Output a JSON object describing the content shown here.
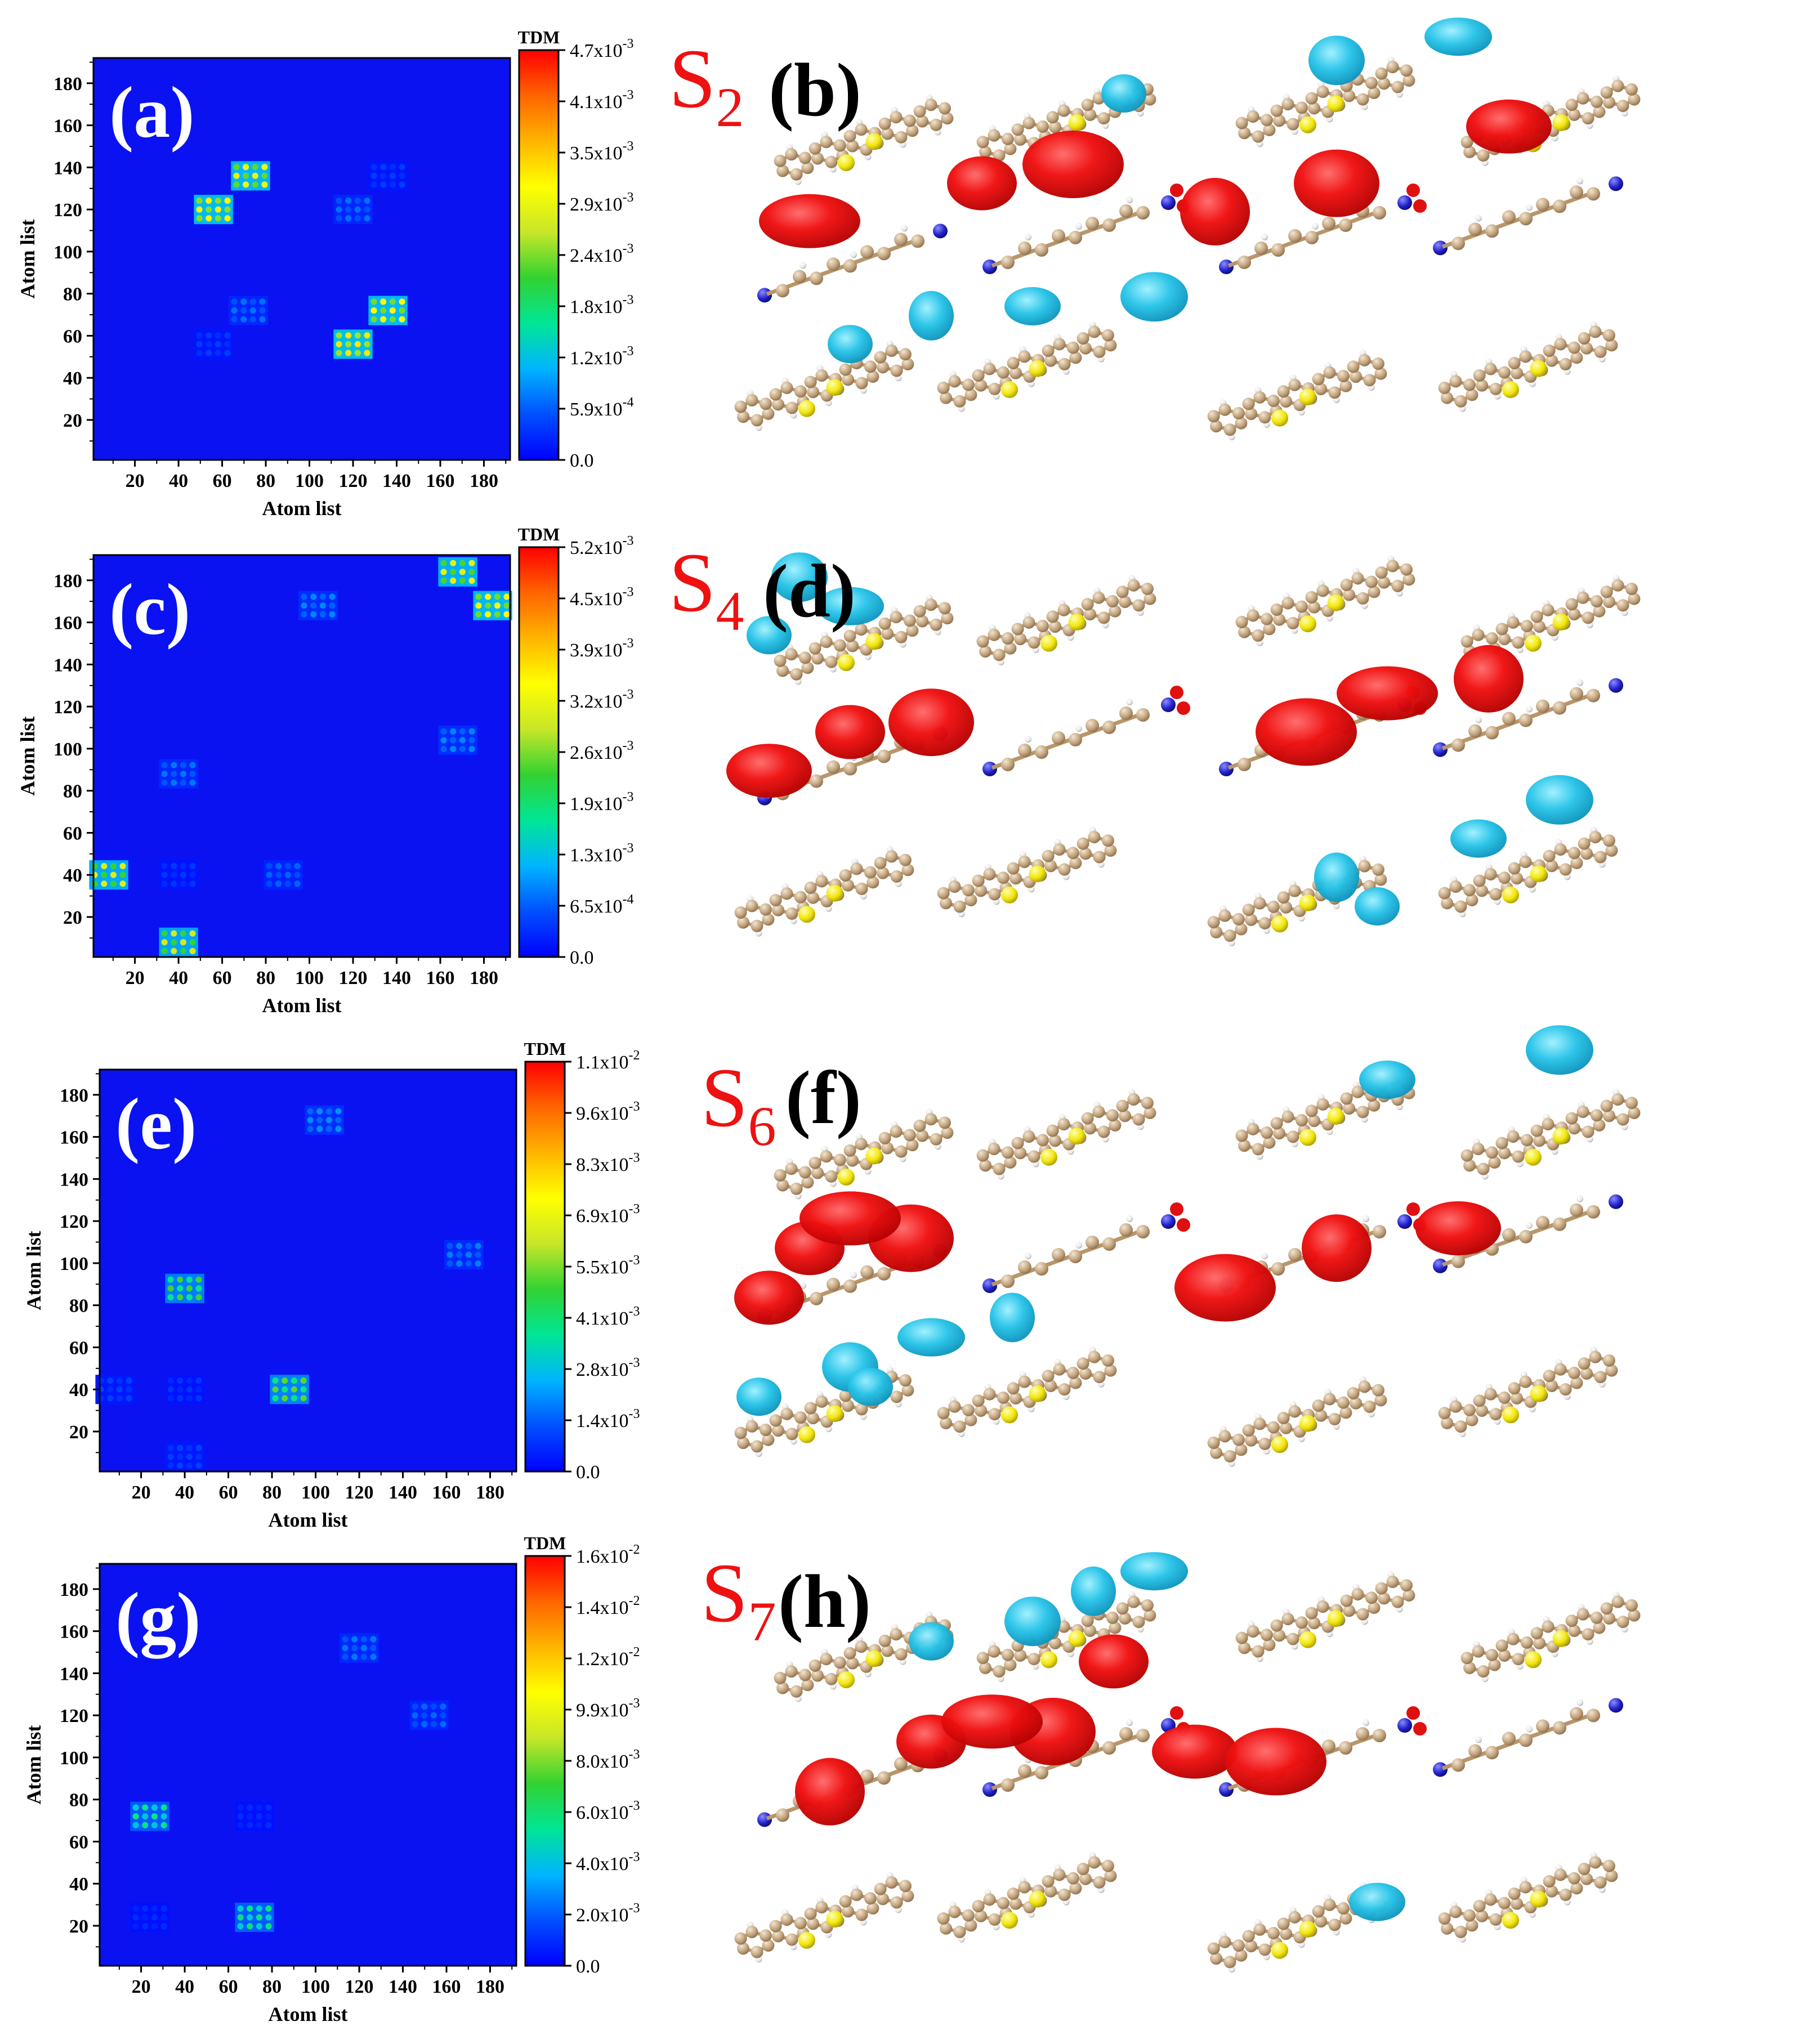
{
  "figure": {
    "colorbar_title": "TDM",
    "axis_label": "Atom list"
  },
  "colormap": [
    "#0000ff",
    "#0050ff",
    "#00b4ff",
    "#00e696",
    "#32d232",
    "#c8e628",
    "#ffff00",
    "#ffb400",
    "#ff6400",
    "#ff0000"
  ],
  "chart_data": [
    {
      "type": "heatmap",
      "panel": "(a)",
      "state": "S",
      "state_sub": "2",
      "molecule_panel": "(b)",
      "xlabel": "Atom list",
      "ylabel": "Atom list",
      "xlim": [
        1,
        192
      ],
      "ylim": [
        1,
        192
      ],
      "x_ticks": [
        20,
        40,
        60,
        80,
        100,
        120,
        140,
        160,
        180
      ],
      "y_ticks": [
        20,
        40,
        60,
        80,
        100,
        120,
        140,
        160,
        180
      ],
      "colorbar_label": "TDM",
      "colorbar_ticks": [
        "4.7x10-3",
        "4.1x10-3",
        "3.5x10-3",
        "2.9x10-3",
        "2.4x10-3",
        "1.8x10-3",
        "1.2x10-3",
        "5.9x10-4",
        "0.0"
      ],
      "colorbar_exponents": [
        "-3",
        "-3",
        "-3",
        "-3",
        "-3",
        "-3",
        "-3",
        "-4",
        ""
      ],
      "colorbar_mantissas": [
        "4.7x10",
        "4.1x10",
        "3.5x10",
        "2.9x10",
        "2.4x10",
        "1.8x10",
        "1.2x10",
        "5.9x10",
        "0.0"
      ],
      "vmax": 0.0047,
      "hotspots": [
        {
          "x": 73,
          "y": 136,
          "value": 0.003
        },
        {
          "x": 56,
          "y": 120,
          "value": 0.0032
        },
        {
          "x": 136,
          "y": 72,
          "value": 0.0031
        },
        {
          "x": 120,
          "y": 56,
          "value": 0.0033
        },
        {
          "x": 120,
          "y": 120,
          "value": 0.0007
        },
        {
          "x": 72,
          "y": 72,
          "value": 0.0007
        },
        {
          "x": 136,
          "y": 136,
          "value": 0.0004
        },
        {
          "x": 56,
          "y": 56,
          "value": 0.0004
        }
      ]
    },
    {
      "type": "heatmap",
      "panel": "(c)",
      "state": "S",
      "state_sub": "4",
      "molecule_panel": "(d)",
      "xlabel": "Atom list",
      "ylabel": "Atom list",
      "xlim": [
        1,
        192
      ],
      "ylim": [
        1,
        192
      ],
      "x_ticks": [
        20,
        40,
        60,
        80,
        100,
        120,
        140,
        160,
        180
      ],
      "y_ticks": [
        20,
        40,
        60,
        80,
        100,
        120,
        140,
        160,
        180
      ],
      "colorbar_label": "TDM",
      "colorbar_ticks": [
        "5.2x10-3",
        "4.5x10-3",
        "3.9x10-3",
        "3.2x10-3",
        "2.6x10-3",
        "1.9x10-3",
        "1.3x10-3",
        "6.5x10-4",
        "0.0"
      ],
      "colorbar_exponents": [
        "-3",
        "-3",
        "-3",
        "-3",
        "-3",
        "-3",
        "-3",
        "-4",
        ""
      ],
      "colorbar_mantissas": [
        "5.2x10",
        "4.5x10",
        "3.9x10",
        "3.2x10",
        "2.6x10",
        "1.9x10",
        "1.3x10",
        "6.5x10",
        "0.0"
      ],
      "vmax": 0.0052,
      "hotspots": [
        {
          "x": 168,
          "y": 184,
          "value": 0.0032
        },
        {
          "x": 184,
          "y": 168,
          "value": 0.0034
        },
        {
          "x": 8,
          "y": 40,
          "value": 0.0031
        },
        {
          "x": 40,
          "y": 8,
          "value": 0.003
        },
        {
          "x": 104,
          "y": 168,
          "value": 0.0009
        },
        {
          "x": 168,
          "y": 104,
          "value": 0.0009
        },
        {
          "x": 40,
          "y": 88,
          "value": 0.0008
        },
        {
          "x": 88,
          "y": 40,
          "value": 0.0007
        },
        {
          "x": 40,
          "y": 40,
          "value": 0.0004
        }
      ]
    },
    {
      "type": "heatmap",
      "panel": "(e)",
      "state": "S",
      "state_sub": "6",
      "molecule_panel": "(f)",
      "xlabel": "Atom list",
      "ylabel": "Atom list",
      "xlim": [
        1,
        192
      ],
      "ylim": [
        1,
        192
      ],
      "x_ticks": [
        20,
        40,
        60,
        80,
        100,
        120,
        140,
        160,
        180
      ],
      "y_ticks": [
        20,
        40,
        60,
        80,
        100,
        120,
        140,
        160,
        180
      ],
      "colorbar_label": "TDM",
      "colorbar_ticks": [
        "1.1x10-2",
        "9.6x10-3",
        "8.3x10-3",
        "6.9x10-3",
        "5.5x10-3",
        "4.1x10-3",
        "2.8x10-3",
        "1.4x10-3",
        "0.0"
      ],
      "colorbar_exponents": [
        "-2",
        "-3",
        "-3",
        "-3",
        "-3",
        "-3",
        "-3",
        "-3",
        ""
      ],
      "colorbar_mantissas": [
        "1.1x10",
        "9.6x10",
        "8.3x10",
        "6.9x10",
        "5.5x10",
        "4.1x10",
        "2.8x10",
        "1.4x10",
        "0.0"
      ],
      "vmax": 0.011,
      "hotspots": [
        {
          "x": 40,
          "y": 88,
          "value": 0.005
        },
        {
          "x": 88,
          "y": 40,
          "value": 0.0052
        },
        {
          "x": 104,
          "y": 168,
          "value": 0.002
        },
        {
          "x": 168,
          "y": 104,
          "value": 0.0018
        },
        {
          "x": 8,
          "y": 40,
          "value": 0.001
        },
        {
          "x": 40,
          "y": 8,
          "value": 0.001
        },
        {
          "x": 40,
          "y": 40,
          "value": 0.0008
        }
      ]
    },
    {
      "type": "heatmap",
      "panel": "(g)",
      "state": "S",
      "state_sub": "7",
      "molecule_panel": "(h)",
      "xlabel": "Atom list",
      "ylabel": "Atom list",
      "xlim": [
        1,
        192
      ],
      "ylim": [
        1,
        192
      ],
      "x_ticks": [
        20,
        40,
        60,
        80,
        100,
        120,
        140,
        160,
        180
      ],
      "y_ticks": [
        20,
        40,
        60,
        80,
        100,
        120,
        140,
        160,
        180
      ],
      "colorbar_label": "TDM",
      "colorbar_ticks": [
        "1.6x10-2",
        "1.4x10-2",
        "1.2x10-2",
        "9.9x10-3",
        "8.0x10-3",
        "6.0x10-3",
        "4.0x10-3",
        "2.0x10-3",
        "0.0"
      ],
      "colorbar_exponents": [
        "-2",
        "-2",
        "-2",
        "-3",
        "-3",
        "-3",
        "-3",
        "-3",
        ""
      ],
      "colorbar_mantissas": [
        "1.6x10",
        "1.4x10",
        "1.2x10",
        "9.9x10",
        "8.0x10",
        "6.0x10",
        "4.0x10",
        "2.0x10",
        "0.0"
      ],
      "vmax": 0.016,
      "hotspots": [
        {
          "x": 24,
          "y": 72,
          "value": 0.0055
        },
        {
          "x": 72,
          "y": 24,
          "value": 0.0057
        },
        {
          "x": 120,
          "y": 152,
          "value": 0.0025
        },
        {
          "x": 152,
          "y": 120,
          "value": 0.0022
        },
        {
          "x": 72,
          "y": 72,
          "value": 0.001
        },
        {
          "x": 24,
          "y": 24,
          "value": 0.001
        }
      ]
    }
  ]
}
